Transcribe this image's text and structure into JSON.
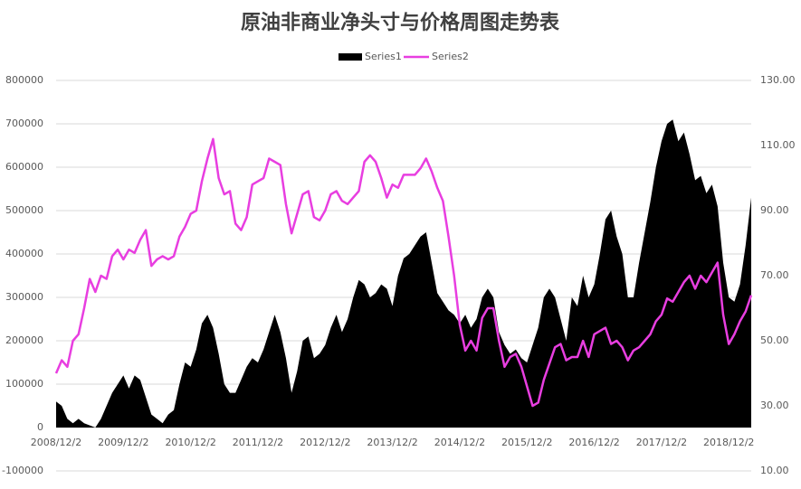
{
  "chart_data": {
    "type": "area-line",
    "title": "原油非商业净头寸与价格周图走势表",
    "x": [
      "2008/12/2",
      null,
      null,
      null,
      null,
      null,
      null,
      null,
      null,
      null,
      null,
      null,
      "2009/12/2",
      null,
      null,
      null,
      null,
      null,
      null,
      null,
      null,
      null,
      null,
      null,
      "2010/12/2",
      null,
      null,
      null,
      null,
      null,
      null,
      null,
      null,
      null,
      null,
      null,
      "2011/12/2",
      null,
      null,
      null,
      null,
      null,
      null,
      null,
      null,
      null,
      null,
      null,
      "2012/12/2",
      null,
      null,
      null,
      null,
      null,
      null,
      null,
      null,
      null,
      null,
      null,
      "2013/12/2",
      null,
      null,
      null,
      null,
      null,
      null,
      null,
      null,
      null,
      null,
      null,
      "2014/12/2",
      null,
      null,
      null,
      null,
      null,
      null,
      null,
      null,
      null,
      null,
      null,
      "2015/12/2",
      null,
      null,
      null,
      null,
      null,
      null,
      null,
      null,
      null,
      null,
      null,
      "2016/12/2",
      null,
      null,
      null,
      null,
      null,
      null,
      null,
      null,
      null,
      null,
      null,
      "2017/12/2",
      null,
      null,
      null,
      null,
      null,
      null,
      null,
      null,
      null,
      null,
      null,
      "2018/12/2",
      null,
      null,
      null,
      null
    ],
    "series": [
      {
        "name": "Series1",
        "color": "#000000",
        "values": [
          60000,
          50000,
          20000,
          10000,
          20000,
          10000,
          5000,
          0,
          20000,
          50000,
          80000,
          100000,
          120000,
          90000,
          120000,
          110000,
          70000,
          30000,
          20000,
          10000,
          30000,
          40000,
          100000,
          150000,
          140000,
          180000,
          240000,
          260000,
          230000,
          170000,
          100000,
          80000,
          80000,
          110000,
          140000,
          160000,
          150000,
          180000,
          220000,
          260000,
          220000,
          160000,
          80000,
          130000,
          200000,
          210000,
          160000,
          170000,
          190000,
          230000,
          260000,
          220000,
          250000,
          300000,
          340000,
          330000,
          300000,
          310000,
          330000,
          320000,
          280000,
          350000,
          390000,
          400000,
          420000,
          440000,
          450000,
          380000,
          310000,
          290000,
          270000,
          260000,
          240000,
          260000,
          230000,
          250000,
          300000,
          320000,
          300000,
          220000,
          190000,
          170000,
          180000,
          160000,
          150000,
          190000,
          230000,
          300000,
          320000,
          300000,
          250000,
          200000,
          300000,
          280000,
          350000,
          300000,
          330000,
          400000,
          480000,
          500000,
          440000,
          400000,
          300000,
          300000,
          380000,
          450000,
          520000,
          600000,
          660000,
          700000,
          710000,
          660000,
          680000,
          630000,
          570000,
          580000,
          540000,
          560000,
          510000,
          380000,
          300000,
          290000,
          330000,
          420000,
          530000
        ]
      },
      {
        "name": "Series2",
        "color": "#e83ee0",
        "axis": "y2",
        "values": [
          40,
          44,
          42,
          50,
          52,
          60,
          69,
          65,
          70,
          69,
          76,
          78,
          75,
          78,
          77,
          81,
          84,
          73,
          75,
          76,
          75,
          76,
          82,
          85,
          89,
          90,
          99,
          106,
          112,
          100,
          95,
          96,
          86,
          84,
          88,
          98,
          99,
          100,
          106,
          105,
          104,
          92,
          83,
          89,
          95,
          96,
          88,
          87,
          90,
          95,
          96,
          93,
          92,
          94,
          96,
          105,
          107,
          105,
          100,
          94,
          98,
          97,
          101,
          101,
          101,
          103,
          106,
          102,
          97,
          93,
          82,
          70,
          55,
          47,
          50,
          47,
          57,
          60,
          60,
          50,
          42,
          45,
          46,
          42,
          36,
          30,
          31,
          38,
          43,
          48,
          49,
          44,
          45,
          45,
          50,
          45,
          52,
          53,
          54,
          49,
          50,
          48,
          44,
          47,
          48,
          50,
          52,
          56,
          58,
          63,
          62,
          65,
          68,
          70,
          66,
          70,
          68,
          71,
          74,
          58,
          49,
          52,
          56,
          59,
          64
        ]
      }
    ],
    "ylim": [
      -100000,
      800000
    ],
    "yticks": [
      -100000,
      0,
      100000,
      200000,
      300000,
      400000,
      500000,
      600000,
      700000,
      800000
    ],
    "y2lim": [
      10,
      130
    ],
    "y2ticks": [
      {
        "value": 10,
        "label": "10.00"
      },
      {
        "value": 30,
        "label": "30.00"
      },
      {
        "value": 50,
        "label": "50.00"
      },
      {
        "value": 70,
        "label": "70.00"
      },
      {
        "value": 90,
        "label": "90.00"
      },
      {
        "value": 110,
        "label": "110.00"
      },
      {
        "value": 130,
        "label": "130.00"
      }
    ],
    "grid": true,
    "legend": "top"
  }
}
